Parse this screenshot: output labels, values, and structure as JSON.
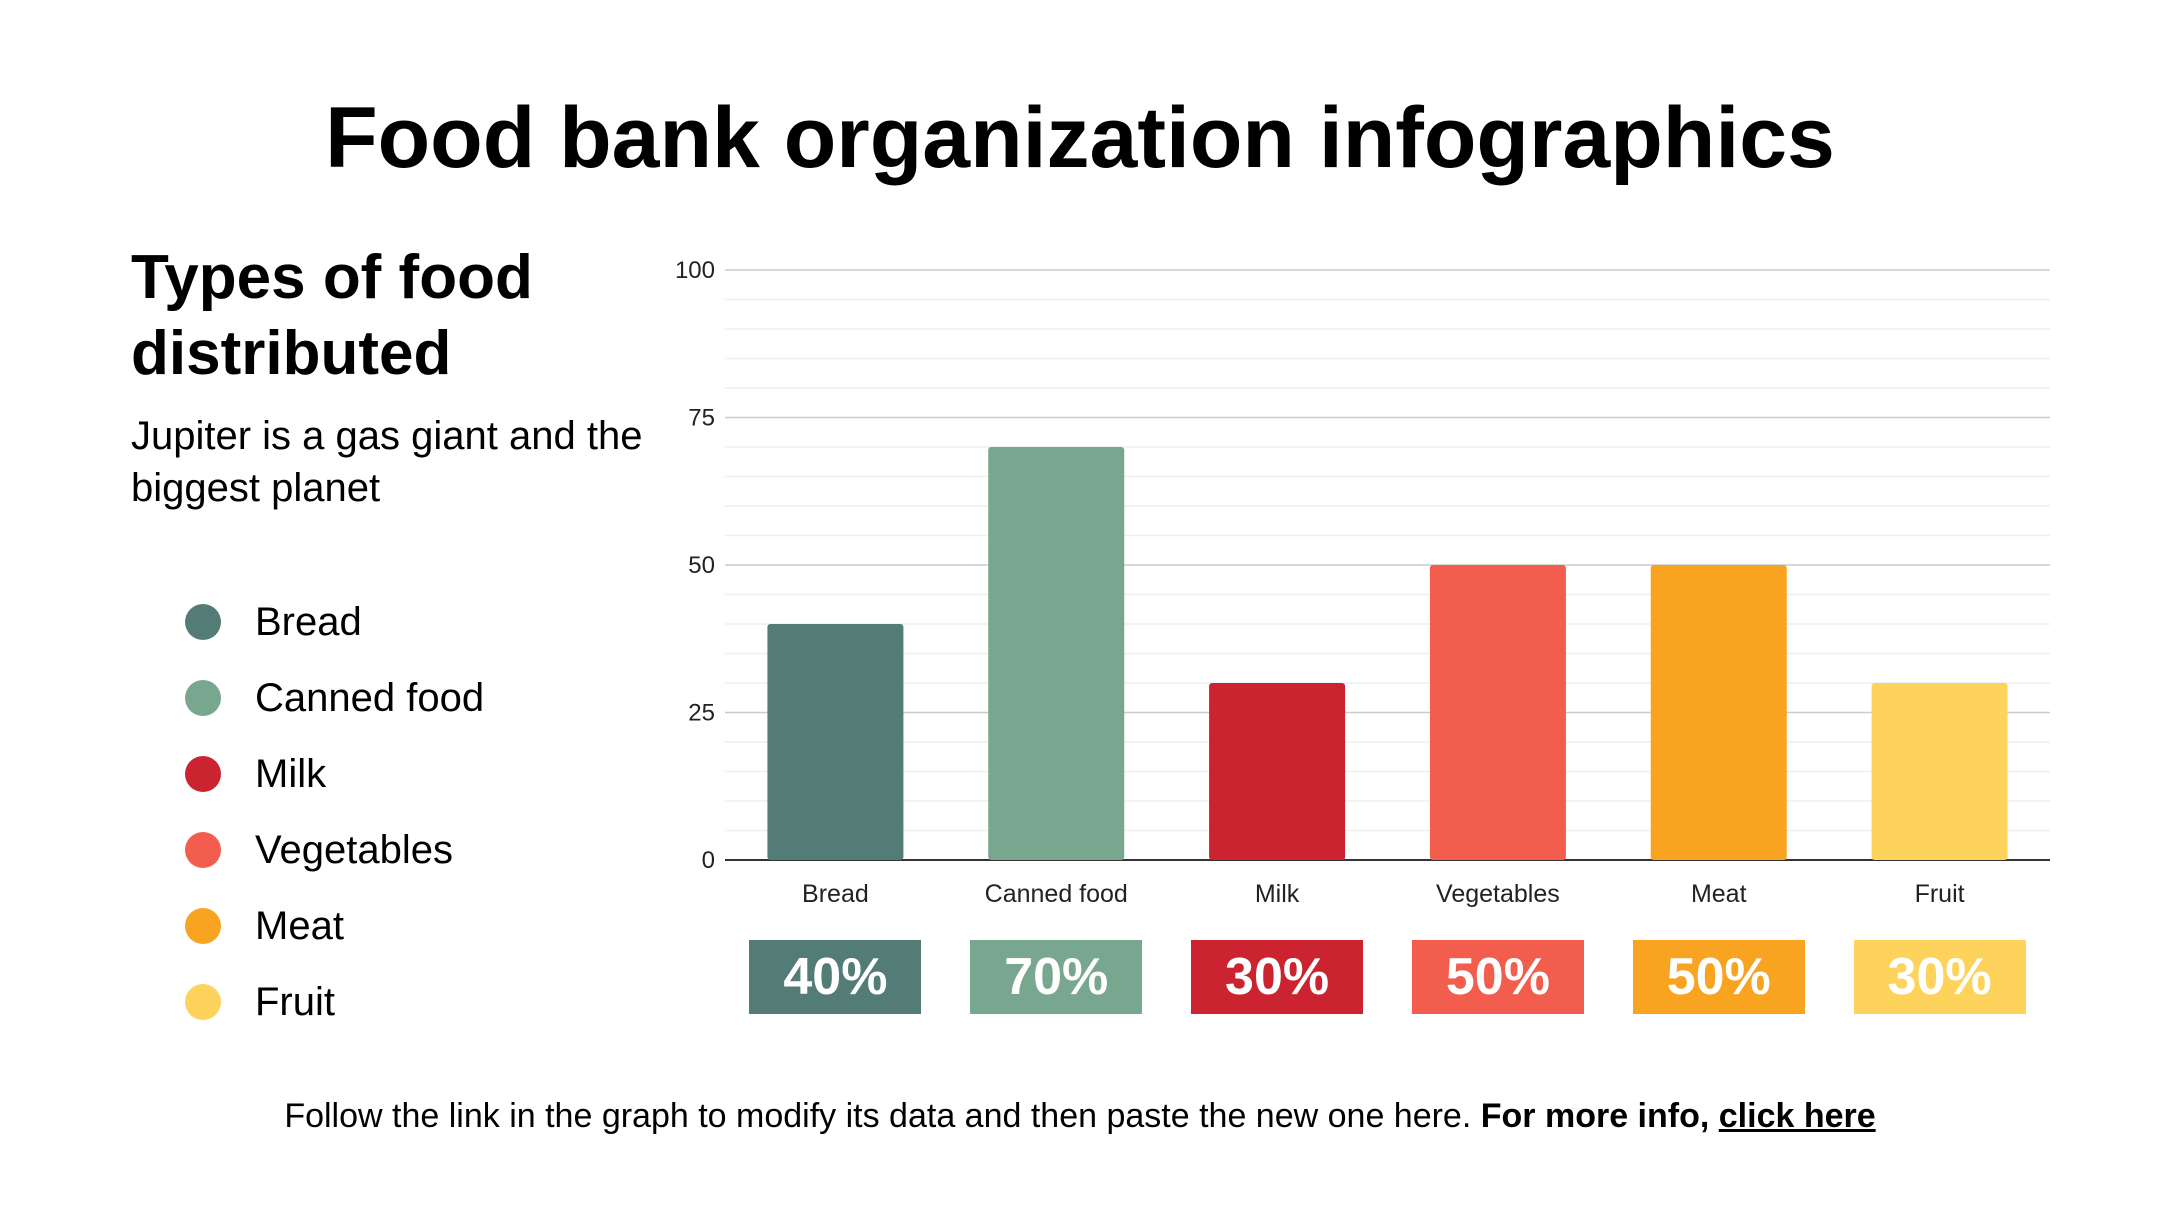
{
  "title": "Food bank organization infographics",
  "side": {
    "heading": "Types of food distributed",
    "description": "Jupiter is a gas giant and the biggest planet"
  },
  "legend": [
    {
      "label": "Bread",
      "color": "#537c77"
    },
    {
      "label": "Canned food",
      "color": "#79a68f"
    },
    {
      "label": "Milk",
      "color": "#cb232f"
    },
    {
      "label": "Vegetables",
      "color": "#f25d4e"
    },
    {
      "label": "Meat",
      "color": "#f8a421"
    },
    {
      "label": "Fruit",
      "color": "#fdd35c"
    }
  ],
  "chart_data": {
    "type": "bar",
    "categories": [
      "Bread",
      "Canned food",
      "Milk",
      "Vegetables",
      "Meat",
      "Fruit"
    ],
    "values": [
      40,
      70,
      30,
      50,
      50,
      30
    ],
    "colors": [
      "#537c77",
      "#79a68f",
      "#cb232f",
      "#f25d4e",
      "#f8a421",
      "#fdd35c"
    ],
    "ylim": [
      0,
      100
    ],
    "yticks": [
      0,
      25,
      50,
      75,
      100
    ],
    "grid": true,
    "title": "",
    "xlabel": "",
    "ylabel": ""
  },
  "percent_labels": [
    "40%",
    "70%",
    "30%",
    "50%",
    "50%",
    "30%"
  ],
  "footer": {
    "text": "Follow the link in the graph to modify its data and then paste the new one here.",
    "bold_text": "For more info,",
    "link_text": "click here"
  }
}
